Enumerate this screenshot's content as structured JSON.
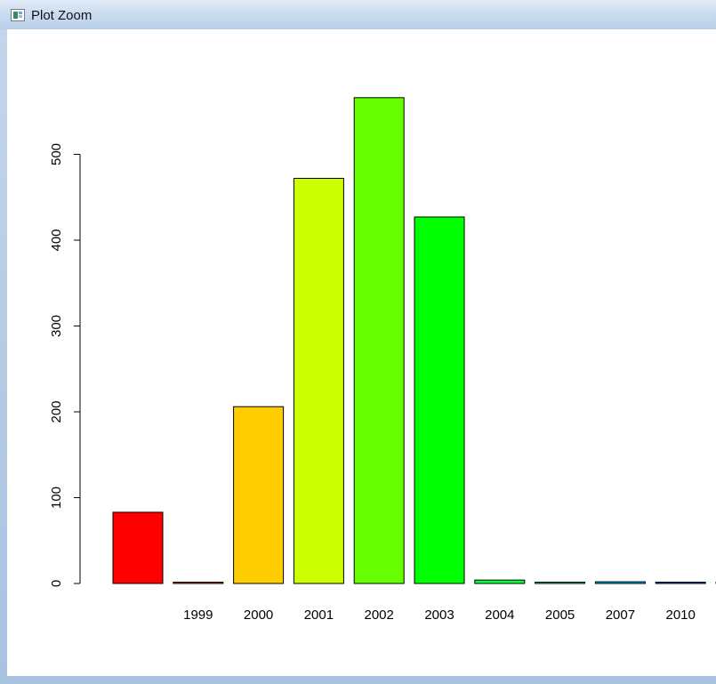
{
  "window": {
    "title": "Plot Zoom",
    "icon": "plot-window-icon"
  },
  "chart_data": {
    "type": "bar",
    "title": "",
    "xlabel": "",
    "ylabel": "",
    "ylim": [
      0,
      580
    ],
    "y_ticks": [
      "0",
      "100",
      "200",
      "300",
      "400",
      "500"
    ],
    "y_tick_values": [
      0,
      100,
      200,
      300,
      400,
      500
    ],
    "categories": [
      "",
      "1999",
      "2000",
      "2001",
      "2002",
      "2003",
      "2004",
      "2005",
      "2007",
      "2010",
      ""
    ],
    "values": [
      83,
      1,
      206,
      472,
      566,
      427,
      4,
      1,
      2,
      1,
      1
    ],
    "colors": [
      "#ff0000",
      "#ff4000",
      "#ffcc00",
      "#ccff00",
      "#66ff00",
      "#00ff00",
      "#00ff40",
      "#00ffa0",
      "#00c0ff",
      "#0060ff",
      "#4000ff"
    ],
    "grid": false,
    "legend": "none"
  }
}
